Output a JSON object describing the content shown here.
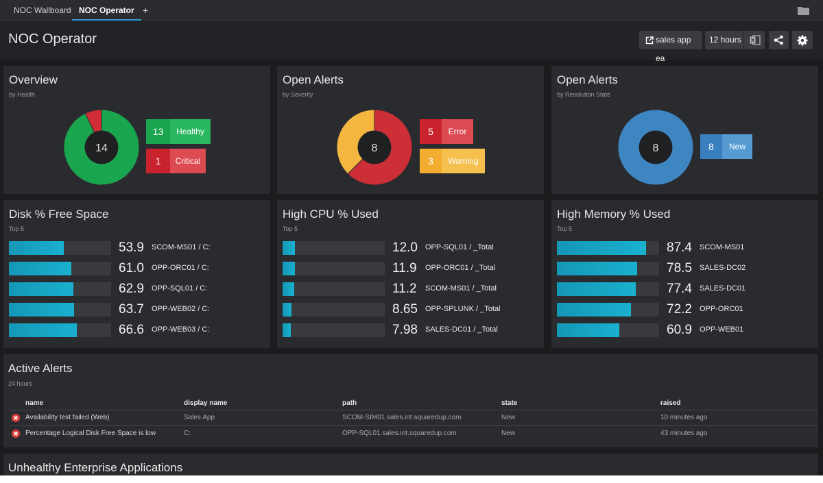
{
  "tabs": [
    {
      "label": "NOC Wallboard",
      "active": false
    },
    {
      "label": "NOC Operator",
      "active": true
    }
  ],
  "tab_add_label": "+",
  "header": {
    "title": "NOC Operator",
    "app_button": "sales app ea",
    "time_button": "12 hours",
    "icons": [
      "external-link-icon",
      "excel-icon",
      "share-icon",
      "gear-icon",
      "folder-icon"
    ]
  },
  "overview": {
    "title": "Overview",
    "subtitle": "by Health",
    "total": "14",
    "items": [
      {
        "count": "13",
        "label": "Healthy",
        "value": 13,
        "color": "#1aa64f",
        "box_num": "#1aa64f",
        "box_lbl": "#29b85f"
      },
      {
        "count": "1",
        "label": "Critical",
        "value": 1,
        "color": "#d02d35",
        "box_num": "#c9242e",
        "box_lbl": "#dc4a52"
      }
    ]
  },
  "alerts_severity": {
    "title": "Open Alerts",
    "subtitle": "by Severity",
    "total": "8",
    "items": [
      {
        "count": "5",
        "label": "Error",
        "value": 5,
        "color": "#cc2f36",
        "box_num": "#c9242e",
        "box_lbl": "#dc4a52"
      },
      {
        "count": "3",
        "label": "Warning",
        "value": 3,
        "color": "#f4b63f",
        "box_num": "#f2ad30",
        "box_lbl": "#f6c04f"
      }
    ]
  },
  "alerts_resolution": {
    "title": "Open Alerts",
    "subtitle": "by Resolution State",
    "total": "8",
    "items": [
      {
        "count": "8",
        "label": "New",
        "value": 8,
        "color": "#3e86c2",
        "box_num": "#3a7fbd",
        "box_lbl": "#559bd2"
      }
    ]
  },
  "disk": {
    "title": "Disk % Free Space",
    "subtitle": "Top 5",
    "rows": [
      {
        "value": 53.9,
        "value_text": "53.9",
        "name": "SCOM-MS01 / C:"
      },
      {
        "value": 61.0,
        "value_text": "61.0",
        "name": "OPP-ORC01 / C:"
      },
      {
        "value": 62.9,
        "value_text": "62.9",
        "name": "OPP-SQL01 / C:"
      },
      {
        "value": 63.7,
        "value_text": "63.7",
        "name": "OPP-WEB02 / C:"
      },
      {
        "value": 66.6,
        "value_text": "66.6",
        "name": "OPP-WEB03 / C:"
      }
    ]
  },
  "cpu": {
    "title": "High CPU % Used",
    "subtitle": "Top 5",
    "rows": [
      {
        "value": 12.0,
        "value_text": "12.0",
        "name": "OPP-SQL01 / _Total"
      },
      {
        "value": 11.9,
        "value_text": "11.9",
        "name": "OPP-ORC01 / _Total"
      },
      {
        "value": 11.2,
        "value_text": "11.2",
        "name": "SCOM-MS01 / _Total"
      },
      {
        "value": 8.65,
        "value_text": "8.65",
        "name": "OPP-SPLUNK / _Total"
      },
      {
        "value": 7.98,
        "value_text": "7.98",
        "name": "SALES-DC01 / _Total"
      }
    ]
  },
  "memory": {
    "title": "High Memory % Used",
    "subtitle": "Top 5",
    "rows": [
      {
        "value": 87.4,
        "value_text": "87.4",
        "name": "SCOM-MS01"
      },
      {
        "value": 78.5,
        "value_text": "78.5",
        "name": "SALES-DC02"
      },
      {
        "value": 77.4,
        "value_text": "77.4",
        "name": "SALES-DC01"
      },
      {
        "value": 72.2,
        "value_text": "72.2",
        "name": "OPP-ORC01"
      },
      {
        "value": 60.9,
        "value_text": "60.9",
        "name": "OPP-WEB01"
      }
    ]
  },
  "active_alerts": {
    "title": "Active Alerts",
    "subtitle": "24 hours",
    "columns": [
      "name",
      "display name",
      "path",
      "state",
      "raised"
    ],
    "rows": [
      {
        "name": "Availability test failed (Web)",
        "display_name": "Sales App",
        "path": "SCOM-SIM01.sales.int.squaredup.com",
        "state": "New",
        "raised": "10 minutes ago",
        "icon": "error-icon"
      },
      {
        "name": "Percentage Logical Disk Free Space is low",
        "display_name": "C:",
        "path": "OPP-SQL01.sales.int.squaredup.com",
        "state": "New",
        "raised": "43 minutes ago",
        "icon": "error-icon"
      }
    ]
  },
  "unhealthy": {
    "title": "Unhealthy Enterprise Applications"
  }
}
